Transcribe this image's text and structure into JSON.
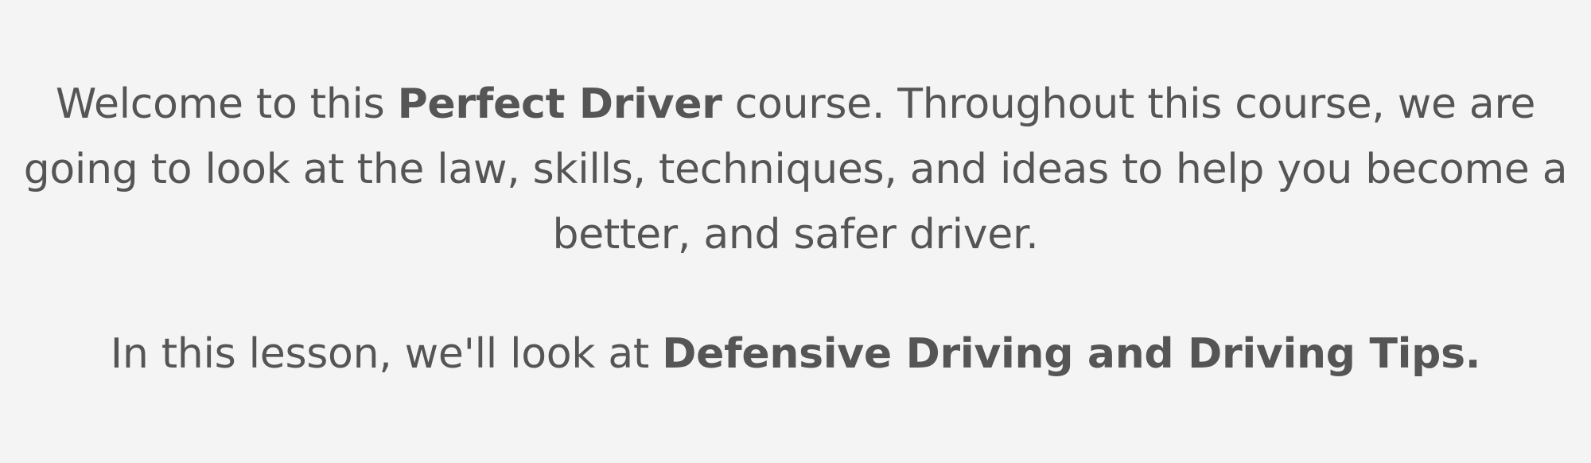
{
  "intro": {
    "before": "Welcome to this ",
    "course_name": "Perfect Driver",
    "after": " course. Throughout this course, we are going to look at the law, skills, techniques, and ideas to help you become a better, and safer driver."
  },
  "lesson": {
    "before": "In this lesson, we'll look at ",
    "topic": "Defensive Driving and Driving Tips."
  },
  "colors": {
    "background": "#f4f4f4",
    "text": "#555555"
  }
}
